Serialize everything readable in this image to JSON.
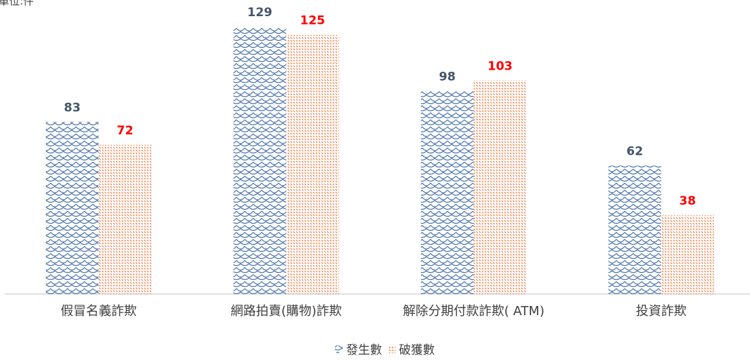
{
  "chart_data": {
    "type": "bar",
    "unit_label": "單位:件",
    "categories": [
      "假冒名義詐欺",
      "網路拍賣(購物)詐欺",
      "解除分期付款詐欺( ATM)",
      "投資詐欺"
    ],
    "series": [
      {
        "name": "發生數",
        "color": "#4f76ad",
        "label_color": "#44546a",
        "values": [
          83,
          129,
          98,
          62
        ]
      },
      {
        "name": "破獲數",
        "color": "#f4733a",
        "label_color": "#ff0000",
        "values": [
          72,
          125,
          103,
          38
        ]
      }
    ],
    "ylim": [
      0,
      130
    ]
  }
}
